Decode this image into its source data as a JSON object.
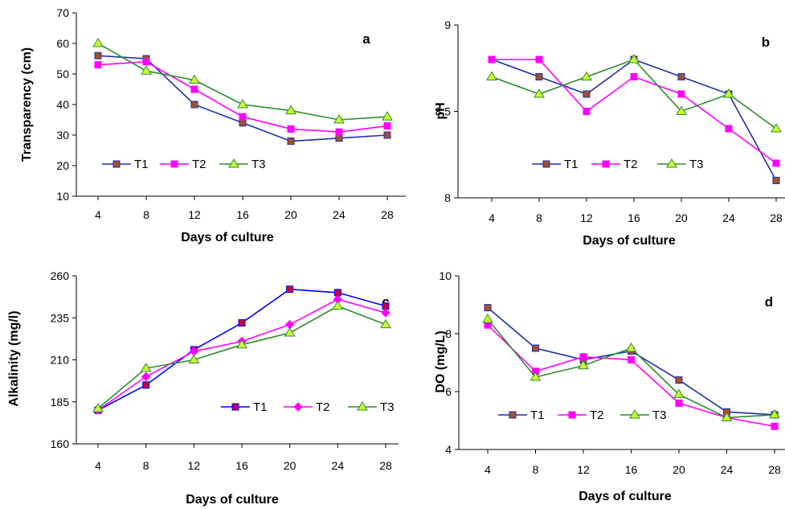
{
  "chart_data": [
    {
      "type": "line",
      "panel_label": "a",
      "xlabel": "Days of culture",
      "ylabel": "Transparency (cm)",
      "x": [
        4,
        8,
        12,
        16,
        20,
        24,
        28
      ],
      "ylim": [
        10,
        70
      ],
      "yticks": [
        10,
        20,
        30,
        40,
        50,
        60,
        70
      ],
      "grid": false,
      "legend_position": "left",
      "series": [
        {
          "name": "T1",
          "values": [
            56,
            55,
            40,
            34,
            28,
            29,
            30
          ],
          "color": "#1f2fa3",
          "marker": "square",
          "marker_color": "#a0522d"
        },
        {
          "name": "T2",
          "values": [
            53,
            54,
            45,
            36,
            32,
            31,
            33
          ],
          "color": "#ff00ff",
          "marker": "square",
          "marker_color": "#ff00ff"
        },
        {
          "name": "T3",
          "values": [
            60,
            51,
            48,
            40,
            38,
            35,
            36
          ],
          "color": "#2e8b2e",
          "marker": "triangle",
          "marker_color": "#ccff33"
        }
      ]
    },
    {
      "type": "line",
      "panel_label": "b",
      "xlabel": "Days of culture",
      "ylabel": "pH",
      "x": [
        4,
        8,
        12,
        16,
        20,
        24,
        28
      ],
      "ylim": [
        8,
        9
      ],
      "yticks": [
        8,
        8.5,
        9
      ],
      "grid": false,
      "legend_position": "center",
      "series": [
        {
          "name": "T1",
          "values": [
            8.8,
            8.7,
            8.6,
            8.8,
            8.7,
            8.6,
            8.1
          ],
          "color": "#1f2fa3",
          "marker": "square",
          "marker_color": "#a0522d"
        },
        {
          "name": "T2",
          "values": [
            8.8,
            8.8,
            8.5,
            8.7,
            8.6,
            8.4,
            8.2
          ],
          "color": "#ff00ff",
          "marker": "square",
          "marker_color": "#ff00ff"
        },
        {
          "name": "T3",
          "values": [
            8.7,
            8.6,
            8.7,
            8.8,
            8.5,
            8.6,
            8.4
          ],
          "color": "#2e8b2e",
          "marker": "triangle",
          "marker_color": "#ccff33"
        }
      ]
    },
    {
      "type": "line",
      "panel_label": "c",
      "xlabel": "Days of culture",
      "ylabel": "Alkalinity (mg/l)",
      "x": [
        4,
        8,
        12,
        16,
        20,
        24,
        28
      ],
      "ylim": [
        160,
        260
      ],
      "yticks": [
        160,
        185,
        210,
        235,
        260
      ],
      "grid": false,
      "legend_position": "right",
      "series": [
        {
          "name": "T1",
          "values": [
            180,
            195,
            216,
            232,
            252,
            250,
            242
          ],
          "color": "#0000ff",
          "marker": "square",
          "marker_color": "#cc0033"
        },
        {
          "name": "T2",
          "values": [
            180,
            200,
            215,
            221,
            231,
            246,
            238
          ],
          "color": "#ff00ff",
          "marker": "diamond",
          "marker_color": "#ff00ff"
        },
        {
          "name": "T3",
          "values": [
            181,
            205,
            210,
            219,
            226,
            242,
            231
          ],
          "color": "#2e8b2e",
          "marker": "triangle",
          "marker_color": "#ccff33"
        }
      ]
    },
    {
      "type": "line",
      "panel_label": "d",
      "xlabel": "Days of culture",
      "ylabel": "DO (mg/L)",
      "x": [
        4,
        8,
        12,
        16,
        20,
        24,
        28
      ],
      "ylim": [
        4,
        10
      ],
      "yticks": [
        4,
        6,
        8,
        10
      ],
      "grid": false,
      "legend_position": "left",
      "series": [
        {
          "name": "T1",
          "values": [
            8.9,
            7.5,
            7.1,
            7.4,
            6.4,
            5.3,
            5.2
          ],
          "color": "#1f2fa3",
          "marker": "square",
          "marker_color": "#a0522d"
        },
        {
          "name": "T2",
          "values": [
            8.3,
            6.7,
            7.2,
            7.1,
            5.6,
            5.1,
            4.8
          ],
          "color": "#ff00ff",
          "marker": "square",
          "marker_color": "#ff00ff"
        },
        {
          "name": "T3",
          "values": [
            8.5,
            6.5,
            6.9,
            7.5,
            5.9,
            5.1,
            5.2
          ],
          "color": "#2e8b2e",
          "marker": "triangle",
          "marker_color": "#ccff33"
        }
      ]
    }
  ]
}
